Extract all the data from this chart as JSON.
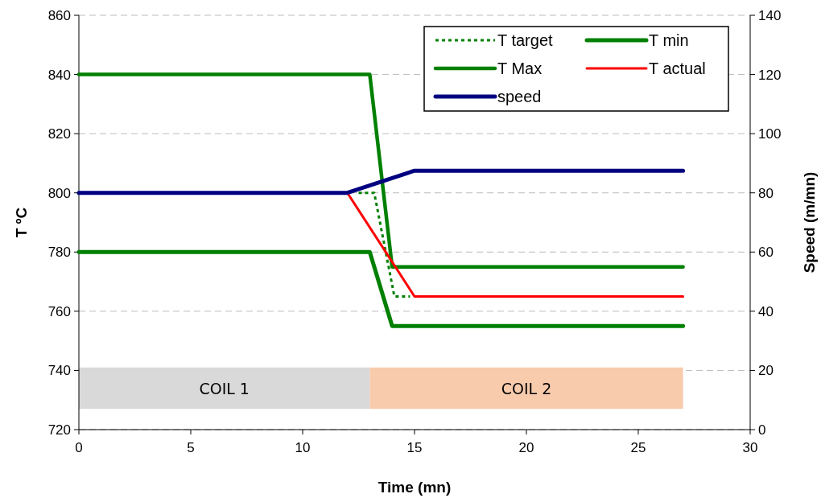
{
  "chart_data": {
    "type": "line",
    "xlabel": "Time (mn)",
    "ylabel": "T ºC",
    "y2label": "Speed (m/mn)",
    "xlim": [
      0,
      30
    ],
    "xticks": [
      0,
      5,
      10,
      15,
      20,
      25,
      30
    ],
    "ylim": [
      720,
      860
    ],
    "yticks": [
      720,
      740,
      760,
      780,
      800,
      820,
      840,
      860
    ],
    "y2lim": [
      0,
      140
    ],
    "y2ticks": [
      0,
      20,
      40,
      60,
      80,
      100,
      120,
      140
    ],
    "grid": "y",
    "legend": "top right",
    "series": [
      {
        "name": "T target",
        "color": "#008000",
        "line_style": "dotted",
        "x": [
          12.5,
          13.2,
          14.1,
          14.8
        ],
        "values": [
          800,
          800,
          765,
          765
        ]
      },
      {
        "name": "T min",
        "color": "#008000",
        "x": [
          0,
          13,
          14,
          27
        ],
        "values": [
          780,
          780,
          755,
          755
        ]
      },
      {
        "name": "T Max",
        "color": "#008000",
        "x": [
          0,
          13,
          14,
          27
        ],
        "values": [
          840,
          840,
          775,
          775
        ]
      },
      {
        "name": "T actual",
        "color": "#ff0000",
        "x": [
          12,
          15,
          27
        ],
        "values": [
          800,
          765,
          765
        ]
      },
      {
        "name": "speed",
        "color": "#000080",
        "axis": "y2",
        "x": [
          0,
          12,
          15,
          27
        ],
        "values": [
          80,
          80,
          87.5,
          87.5
        ]
      }
    ],
    "bands": [
      {
        "axis": "x",
        "from": 0,
        "to": 13,
        "label": "COIL 1",
        "color": "#d9d9d9"
      },
      {
        "axis": "x",
        "from": 13,
        "to": 27,
        "label": "COIL 2",
        "color": "#f8cbad"
      }
    ]
  }
}
